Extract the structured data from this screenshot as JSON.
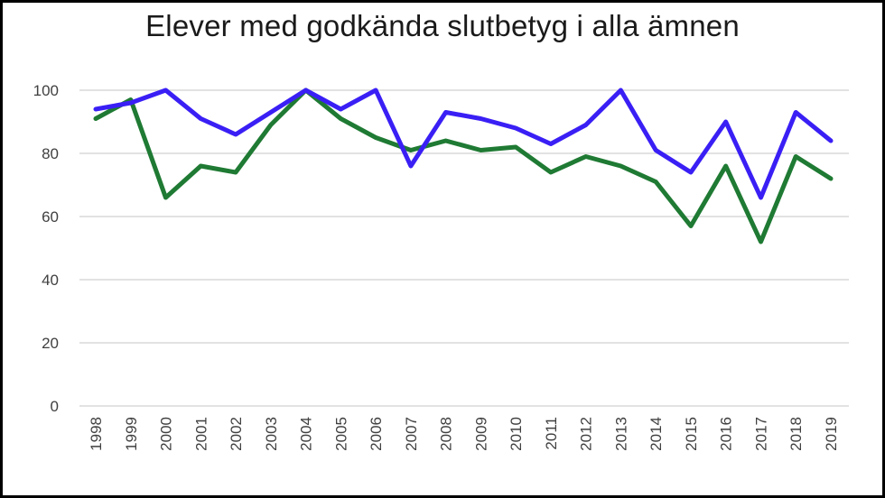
{
  "chart_data": {
    "type": "line",
    "title": "Elever med godkända slutbetyg i alla ämnen",
    "categories": [
      "1998",
      "1999",
      "2000",
      "2001",
      "2002",
      "2003",
      "2004",
      "2005",
      "2006",
      "2007",
      "2008",
      "2009",
      "2010",
      "2011",
      "2012",
      "2013",
      "2014",
      "2015",
      "2016",
      "2017",
      "2018",
      "2019"
    ],
    "ylim": [
      0,
      100
    ],
    "yticks": [
      0,
      20,
      40,
      60,
      80,
      100
    ],
    "grid": true,
    "series": [
      {
        "color": "#3a1ff5",
        "values": [
          94,
          96,
          100,
          91,
          86,
          93,
          100,
          94,
          100,
          76,
          93,
          91,
          88,
          83,
          89,
          100,
          81,
          74,
          90,
          66,
          93,
          84
        ]
      },
      {
        "color": "#1f7a33",
        "values": [
          91,
          97,
          66,
          76,
          74,
          89,
          100,
          91,
          85,
          81,
          84,
          81,
          82,
          74,
          79,
          76,
          71,
          57,
          76,
          52,
          79,
          72
        ]
      }
    ]
  }
}
